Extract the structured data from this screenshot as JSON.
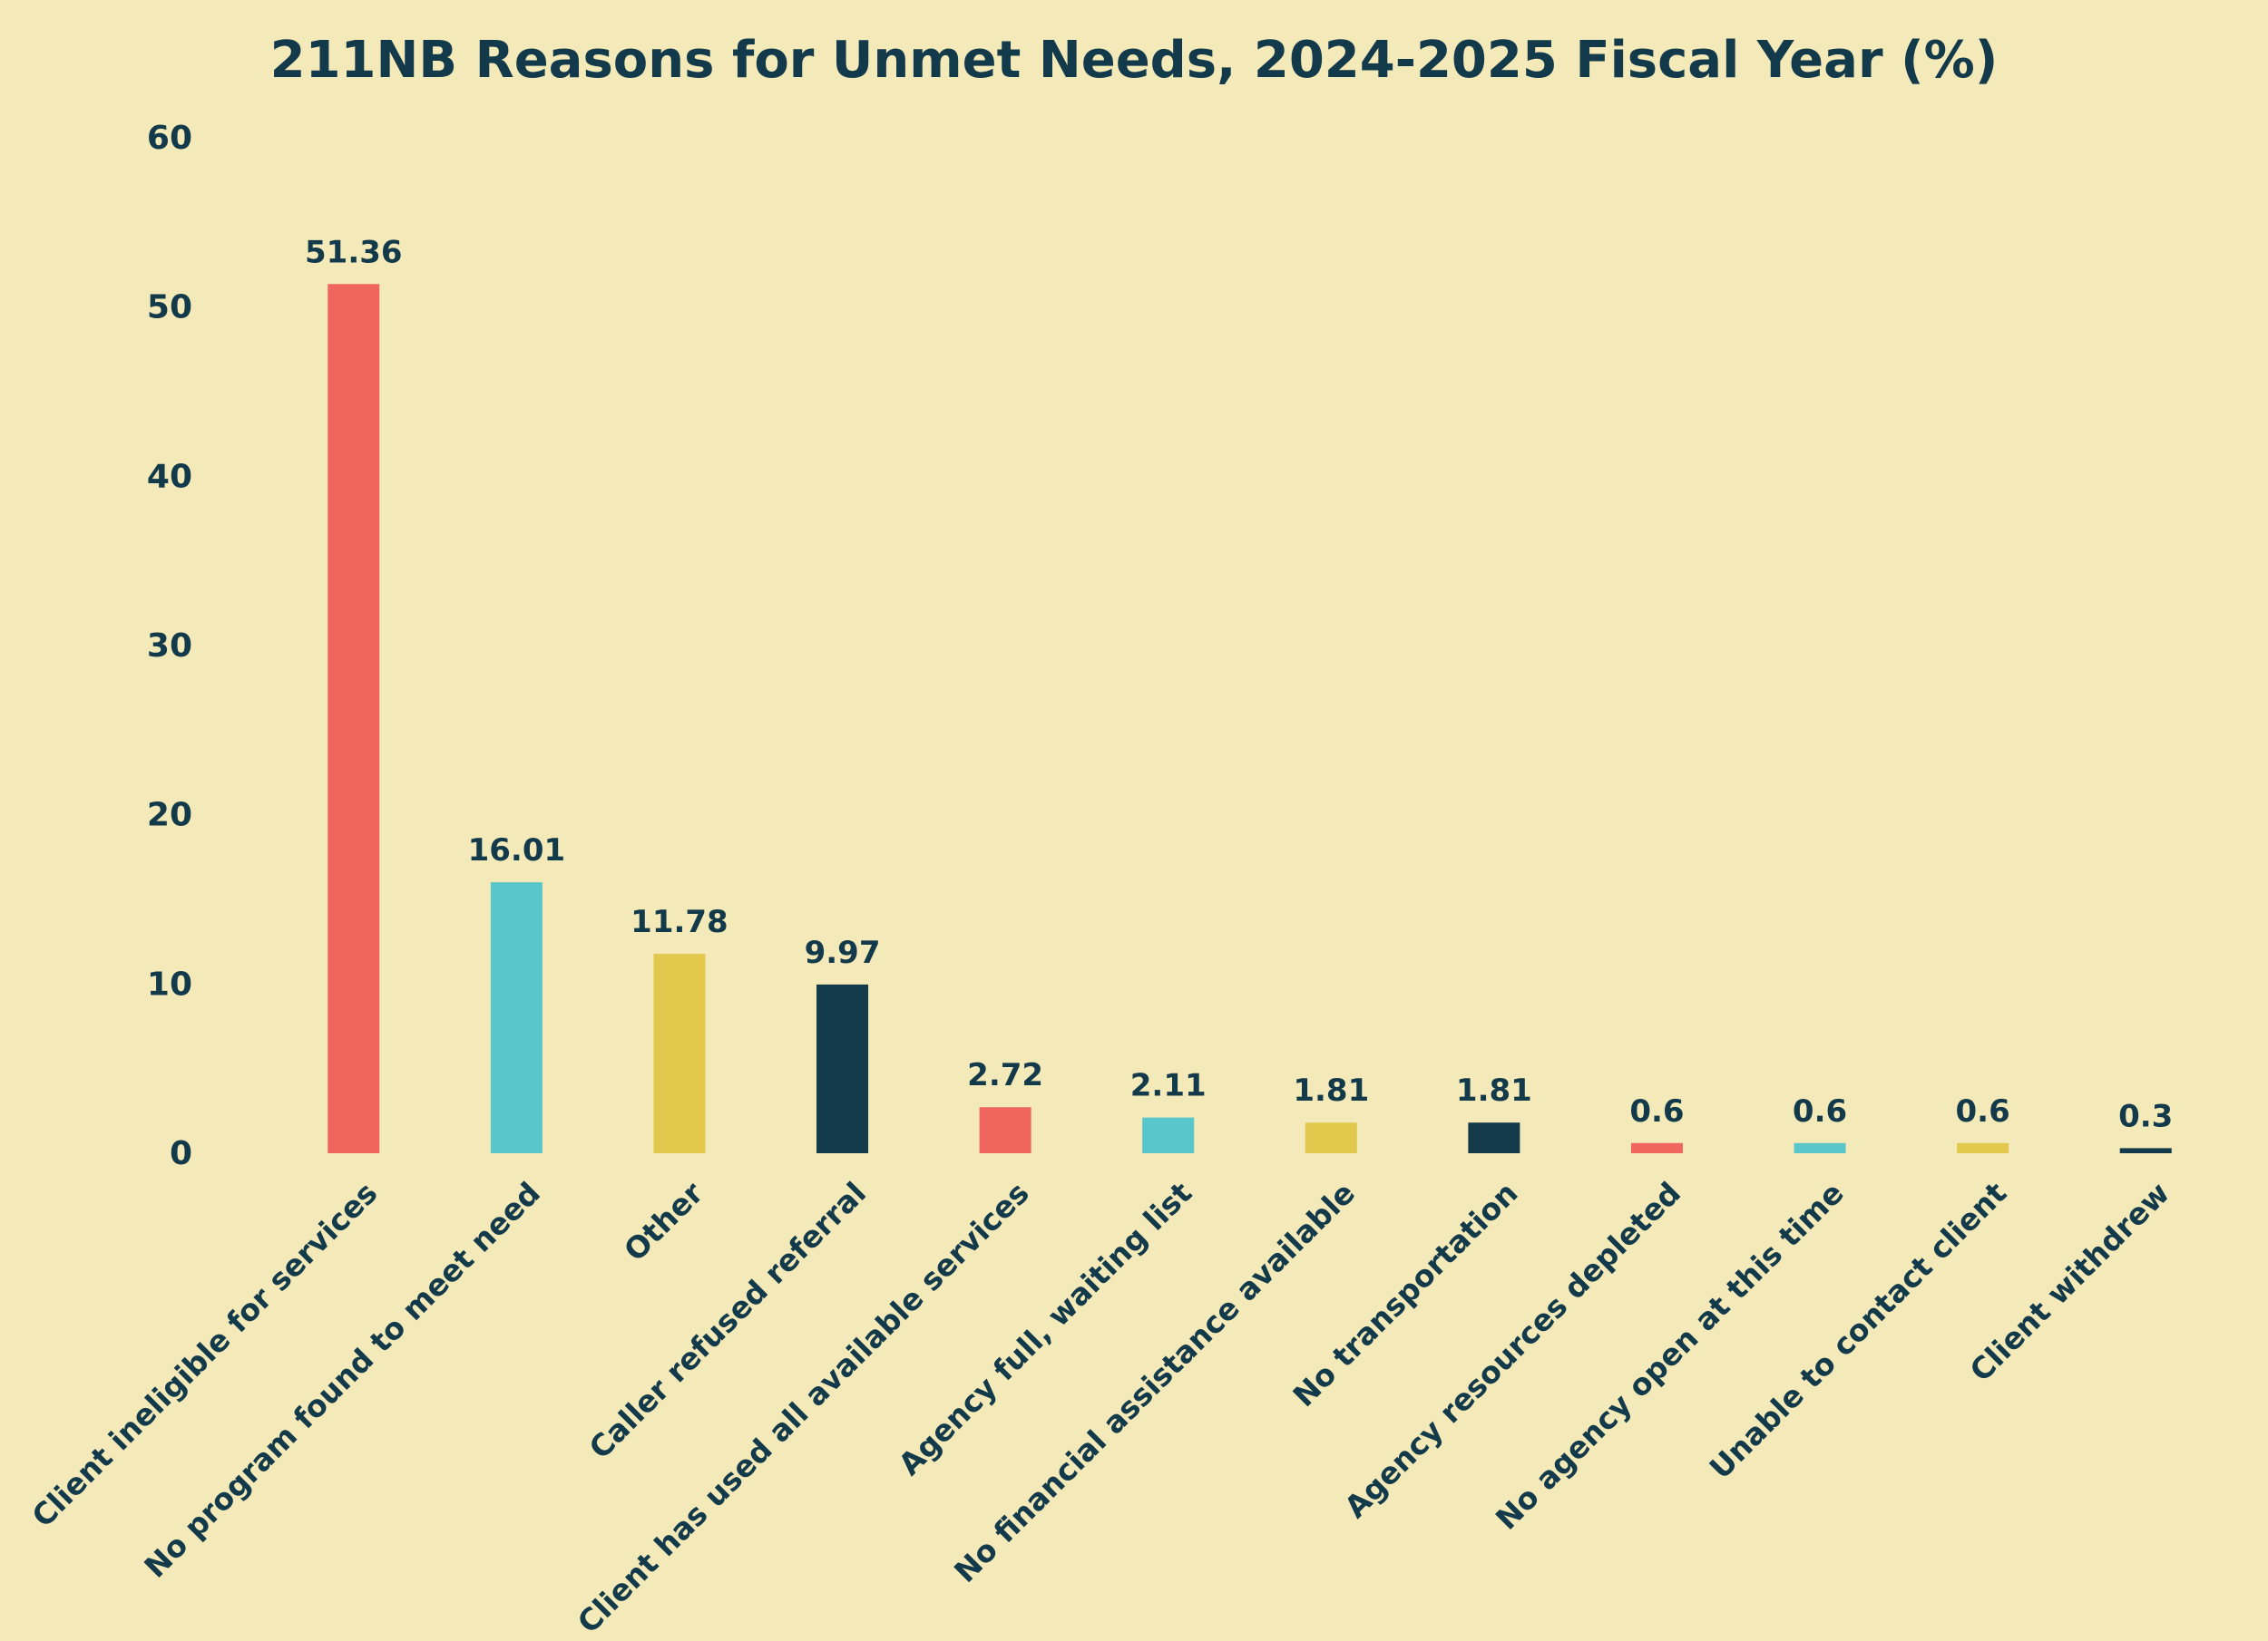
{
  "chart_data": {
    "type": "bar",
    "title": "211NB Reasons for Unmet Needs, 2024-2025 Fiscal Year (%)",
    "xlabel": "",
    "ylabel": "",
    "ylim": [
      0,
      60
    ],
    "yticks": [
      0,
      10,
      20,
      30,
      40,
      50,
      60
    ],
    "grid": false,
    "categories": [
      "Client ineligible for services",
      "No program found to meet need",
      "Other",
      "Caller refused referral",
      "Client has used all available services",
      "Agency full, waiting list",
      "No financial assistance available",
      "No transportation",
      "Agency resources depleted",
      "No agency open at this time",
      "Unable to contact client",
      "Client withdrew"
    ],
    "values": [
      51.36,
      16.01,
      11.78,
      9.97,
      2.72,
      2.11,
      1.81,
      1.81,
      0.6,
      0.6,
      0.6,
      0.3
    ],
    "value_labels": [
      "51.36",
      "16.01",
      "11.78",
      "9.97",
      "2.72",
      "2.11",
      "1.81",
      "1.81",
      "0.6",
      "0.6",
      "0.6",
      "0.3"
    ],
    "colors": [
      "#F0665E",
      "#58C6CA",
      "#E3C84E",
      "#133A4A",
      "#F0665E",
      "#58C6CA",
      "#E3C84E",
      "#133A4A",
      "#F0665E",
      "#58C6CA",
      "#E3C84E",
      "#133A4A"
    ],
    "text_color": "#133A4A",
    "background": "#F4E9B8"
  }
}
